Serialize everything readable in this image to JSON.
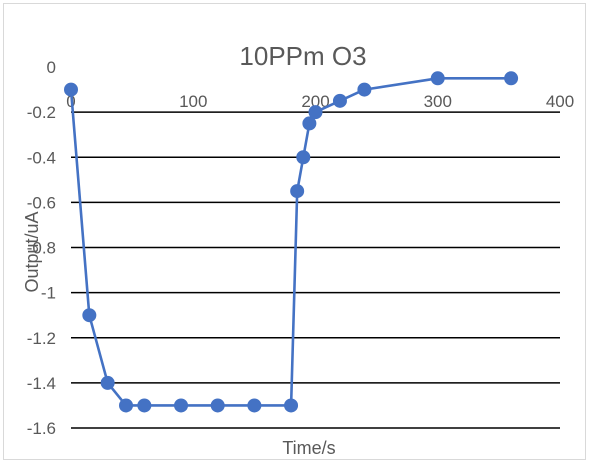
{
  "chart_data": {
    "type": "scatter",
    "title": "10PPm  O3",
    "xlabel": "Time/s",
    "ylabel": "Output/uA",
    "xlim": [
      0,
      400
    ],
    "ylim": [
      -1.6,
      0
    ],
    "x_ticks": [
      0,
      100,
      200,
      300,
      400
    ],
    "y_ticks": [
      0,
      -0.2,
      -0.4,
      -0.6,
      -0.8,
      -1,
      -1.2,
      -1.4,
      -1.6
    ],
    "x_tick_labels": [
      "0",
      "100",
      "200",
      "300",
      "400"
    ],
    "y_tick_labels": [
      "0",
      "-0.2",
      "-0.4",
      "-0.6",
      "-0.8",
      "-1",
      "-1.2",
      "-1.4",
      "-1.6"
    ],
    "grid": true,
    "x_axis_position": "top",
    "series": [
      {
        "color": "#4472c4",
        "x": [
          0,
          15,
          30,
          45,
          60,
          90,
          120,
          150,
          180,
          185,
          190,
          195,
          200,
          220,
          240,
          300,
          360
        ],
        "y": [
          -0.1,
          -1.1,
          -1.4,
          -1.5,
          -1.5,
          -1.5,
          -1.5,
          -1.5,
          -1.5,
          -0.55,
          -0.4,
          -0.25,
          -0.2,
          -0.15,
          -0.1,
          -0.05,
          -0.05
        ]
      }
    ]
  }
}
